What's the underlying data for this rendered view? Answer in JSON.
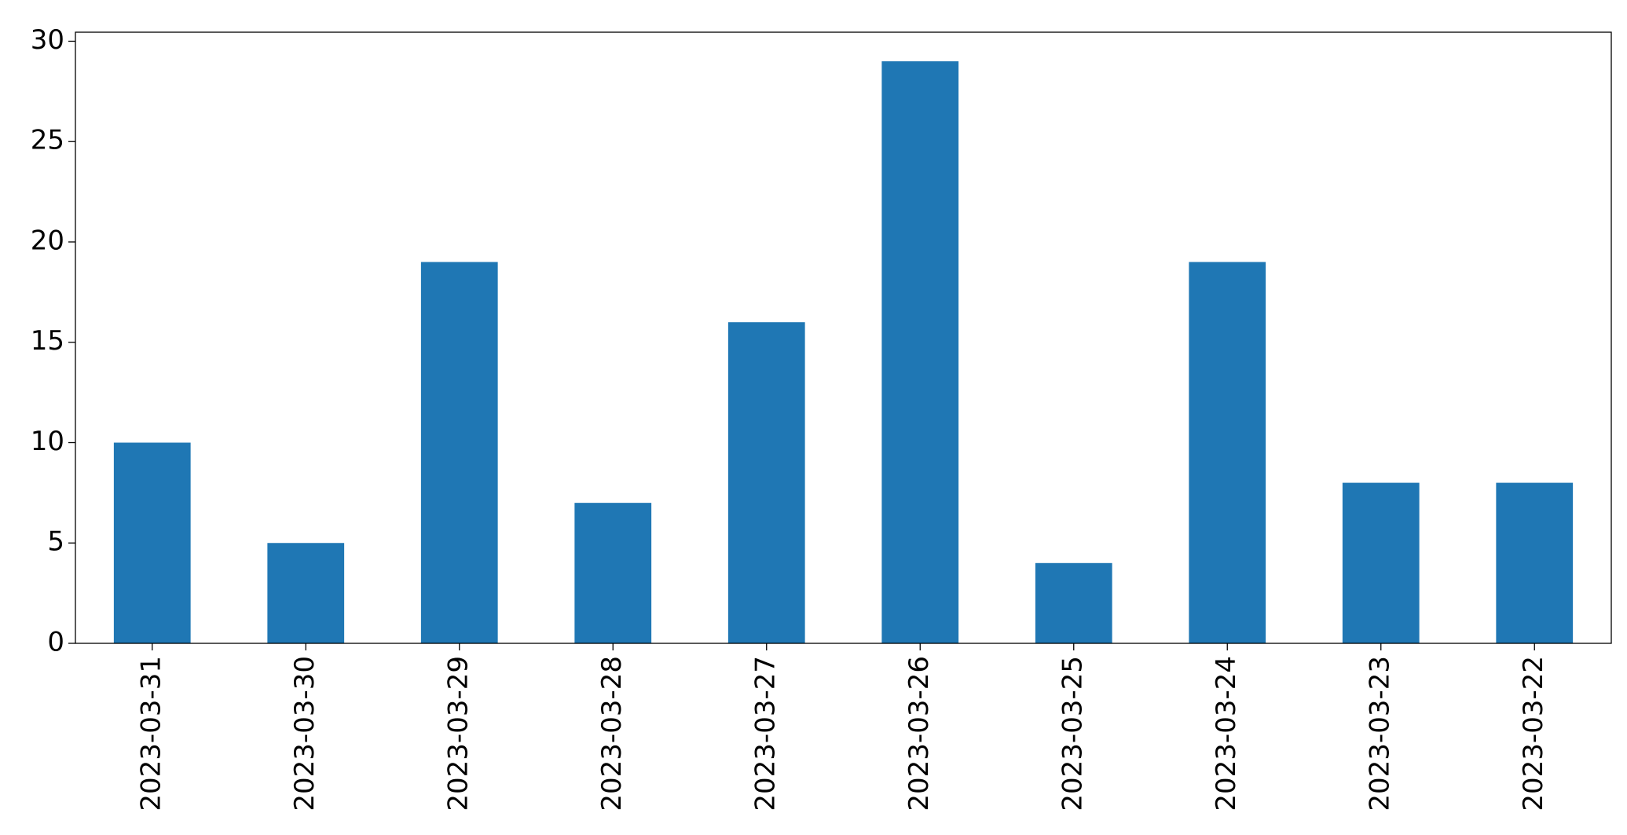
{
  "chart_data": {
    "type": "bar",
    "categories": [
      "2023-03-31",
      "2023-03-30",
      "2023-03-29",
      "2023-03-28",
      "2023-03-27",
      "2023-03-26",
      "2023-03-25",
      "2023-03-24",
      "2023-03-23",
      "2023-03-22"
    ],
    "values": [
      10,
      5,
      19,
      7,
      16,
      29,
      4,
      19,
      8,
      8
    ],
    "color": "#1f77b4",
    "ylim": [
      0,
      30.45
    ],
    "yticks": [
      0,
      5,
      10,
      15,
      20,
      25,
      30
    ],
    "grid": false
  }
}
